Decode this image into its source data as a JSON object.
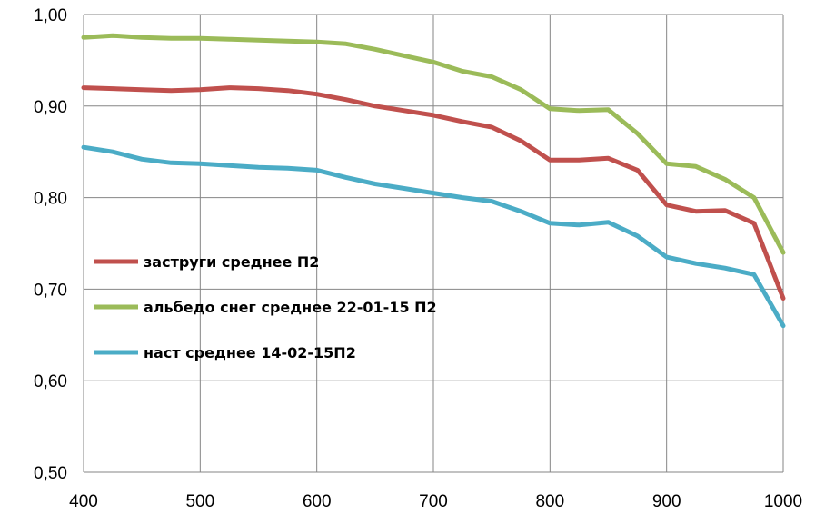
{
  "chart_data": {
    "type": "line",
    "title": "",
    "xlabel": "",
    "ylabel": "",
    "xlim": [
      400,
      1000
    ],
    "ylim": [
      0.5,
      1.0
    ],
    "x_ticks": [
      "400",
      "500",
      "600",
      "700",
      "800",
      "900",
      "1000"
    ],
    "y_ticks": [
      "0,50",
      "0,60",
      "0,70",
      "0,80",
      "0,90",
      "1,00"
    ],
    "grid": true,
    "legend_position": "left-lower inside plot",
    "x": [
      400,
      425,
      450,
      475,
      500,
      525,
      550,
      575,
      600,
      625,
      650,
      675,
      700,
      725,
      750,
      775,
      800,
      825,
      850,
      875,
      900,
      925,
      950,
      975,
      1000
    ],
    "series": [
      {
        "name": "заструги среднее П2",
        "color": "#c0504d",
        "values": [
          0.92,
          0.919,
          0.918,
          0.917,
          0.918,
          0.92,
          0.919,
          0.917,
          0.913,
          0.907,
          0.9,
          0.895,
          0.89,
          0.883,
          0.877,
          0.862,
          0.841,
          0.841,
          0.843,
          0.83,
          0.792,
          0.785,
          0.786,
          0.772,
          0.69
        ]
      },
      {
        "name": "альбедо снег  среднее 22-01-15 П2",
        "color": "#9bbb59",
        "values": [
          0.975,
          0.977,
          0.975,
          0.974,
          0.974,
          0.973,
          0.972,
          0.971,
          0.97,
          0.968,
          0.962,
          0.955,
          0.948,
          0.938,
          0.932,
          0.918,
          0.897,
          0.895,
          0.896,
          0.87,
          0.837,
          0.834,
          0.82,
          0.8,
          0.74
        ]
      },
      {
        "name": "наст среднее 14-02-15П2",
        "color": "#4bacc6",
        "values": [
          0.855,
          0.85,
          0.842,
          0.838,
          0.837,
          0.835,
          0.833,
          0.832,
          0.83,
          0.822,
          0.815,
          0.81,
          0.805,
          0.8,
          0.796,
          0.785,
          0.772,
          0.77,
          0.773,
          0.758,
          0.735,
          0.728,
          0.723,
          0.716,
          0.66
        ]
      }
    ]
  }
}
